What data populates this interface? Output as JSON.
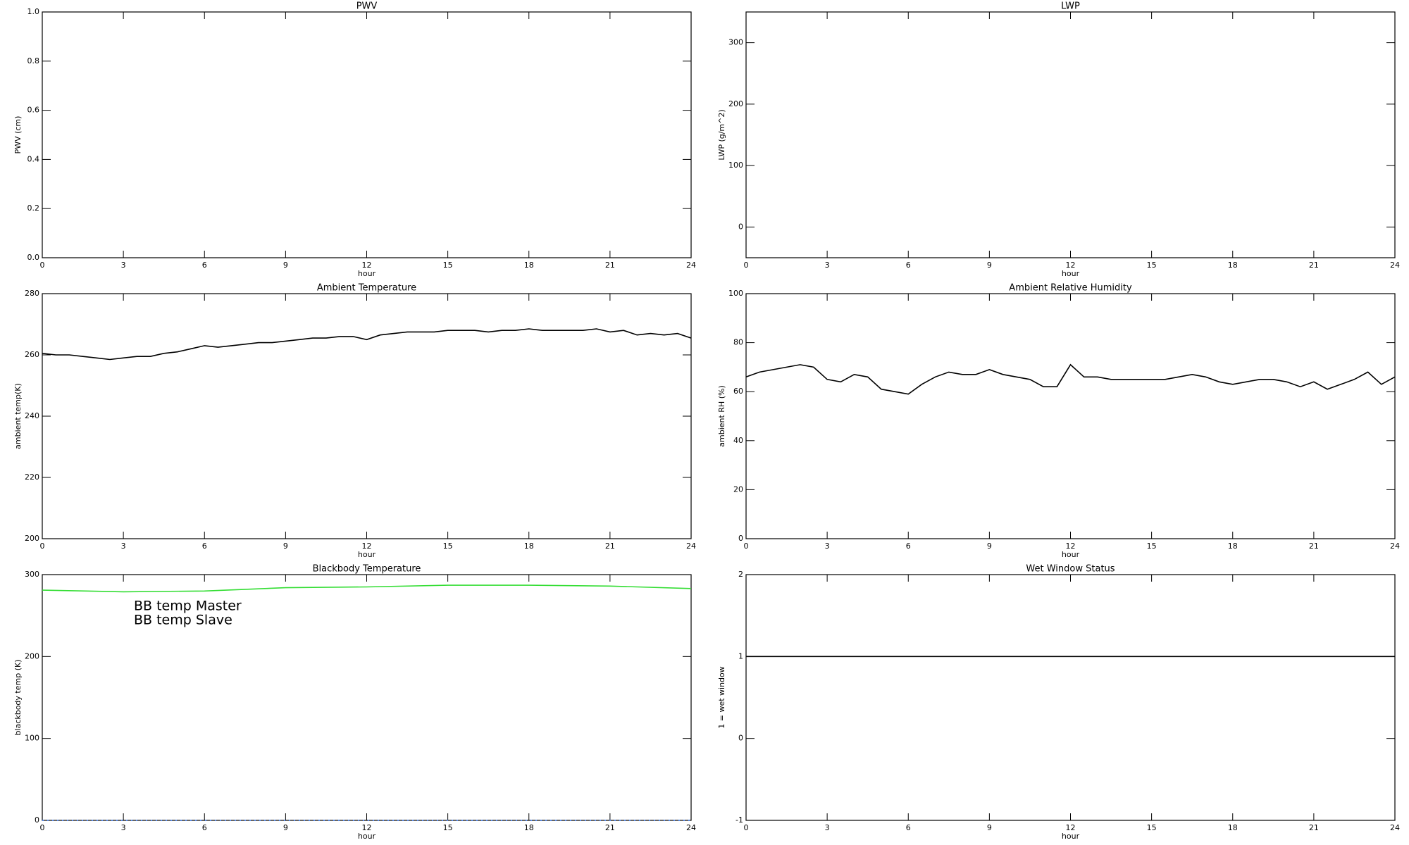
{
  "chart_data": [
    {
      "type": "line",
      "title": "PWV",
      "xlabel": "hour",
      "ylabel": "PWV (cm)",
      "xlim": [
        0,
        24
      ],
      "xticks": [
        0,
        3,
        6,
        9,
        12,
        15,
        18,
        21,
        24
      ],
      "ylim": [
        0,
        1
      ],
      "yticks": [
        {
          "value": 0,
          "label": "0.0"
        },
        0.2,
        0.4,
        0.6,
        0.8,
        {
          "value": 1,
          "label": "1.0"
        }
      ]
    },
    {
      "type": "line",
      "title": "LWP",
      "xlabel": "hour",
      "ylabel": "LWP (g/m^2)",
      "xlim": [
        0,
        24
      ],
      "xticks": [
        0,
        3,
        6,
        9,
        12,
        15,
        18,
        21,
        24
      ],
      "ylim": [
        -50,
        350
      ],
      "yticks": [
        0,
        100,
        200,
        300
      ]
    },
    {
      "type": "line",
      "title": "Ambient Temperature",
      "xlabel": "hour",
      "ylabel": "ambient temp(K)",
      "xlim": [
        0,
        24
      ],
      "xticks": [
        0,
        3,
        6,
        9,
        12,
        15,
        18,
        21,
        24
      ],
      "ylim": [
        200,
        280
      ],
      "yticks": [
        200,
        220,
        240,
        260,
        280
      ],
      "x": [
        0,
        0.5,
        1,
        1.5,
        2,
        2.5,
        3,
        3.5,
        4,
        4.5,
        5,
        5.5,
        6,
        6.5,
        7,
        7.5,
        8,
        8.5,
        9,
        9.5,
        10,
        10.5,
        11,
        11.5,
        12,
        12.5,
        13,
        13.5,
        14,
        14.5,
        15,
        15.5,
        16,
        16.5,
        17,
        17.5,
        18,
        18.5,
        19,
        19.5,
        20,
        20.5,
        21,
        21.5,
        22,
        22.5,
        23,
        23.5,
        24
      ],
      "series": [
        {
          "color": "#000000",
          "values": [
            260.5,
            260,
            260,
            259.5,
            259,
            258.5,
            259,
            259.5,
            259.5,
            260.5,
            261,
            262,
            263,
            262.5,
            263,
            263.5,
            264,
            264,
            264.5,
            265,
            265.5,
            265.5,
            266,
            266,
            265,
            266.5,
            267,
            267.5,
            267.5,
            267.5,
            268,
            268,
            268,
            267.5,
            268,
            268,
            268.5,
            268,
            268,
            268,
            268,
            268.5,
            267.5,
            268,
            266.5,
            267,
            266.5,
            267,
            265.5
          ]
        }
      ]
    },
    {
      "type": "line",
      "title": "Ambient Relative Humidity",
      "xlabel": "hour",
      "ylabel": "ambient RH (%)",
      "xlim": [
        0,
        24
      ],
      "xticks": [
        0,
        3,
        6,
        9,
        12,
        15,
        18,
        21,
        24
      ],
      "ylim": [
        0,
        100
      ],
      "yticks": [
        0,
        20,
        40,
        60,
        80,
        100
      ],
      "x": [
        0,
        0.5,
        1,
        1.5,
        2,
        2.5,
        3,
        3.5,
        4,
        4.5,
        5,
        5.5,
        6,
        6.5,
        7,
        7.5,
        8,
        8.5,
        9,
        9.5,
        10,
        10.5,
        11,
        11.5,
        12,
        12.5,
        13,
        13.5,
        14,
        14.5,
        15,
        15.5,
        16,
        16.5,
        17,
        17.5,
        18,
        18.5,
        19,
        19.5,
        20,
        20.5,
        21,
        21.5,
        22,
        22.5,
        23,
        23.5,
        24
      ],
      "series": [
        {
          "color": "#000000",
          "values": [
            66,
            68,
            69,
            70,
            71,
            70,
            65,
            64,
            67,
            66,
            61,
            60,
            59,
            63,
            66,
            68,
            67,
            67,
            69,
            67,
            66,
            65,
            62,
            62,
            71,
            66,
            66,
            65,
            65,
            65,
            65,
            65,
            66,
            67,
            66,
            64,
            63,
            64,
            65,
            65,
            64,
            62,
            64,
            61,
            63,
            65,
            68,
            63,
            66
          ]
        }
      ]
    },
    {
      "type": "line",
      "title": "Blackbody Temperature",
      "xlabel": "hour",
      "ylabel": "blackbody temp (K)",
      "xlim": [
        0,
        24
      ],
      "xticks": [
        0,
        3,
        6,
        9,
        12,
        15,
        18,
        21,
        24
      ],
      "ylim": [
        0,
        300
      ],
      "yticks": [
        0,
        100,
        200,
        300
      ],
      "legend": "upper left",
      "x": [
        0,
        3,
        6,
        9,
        12,
        15,
        18,
        21,
        24
      ],
      "series": [
        {
          "name": "BB temp Master",
          "color": "#3a7fff",
          "values": [
            0,
            0,
            0,
            0,
            0,
            0,
            0,
            0,
            0
          ]
        },
        {
          "name": "BB temp Slave",
          "color": "#33dd33",
          "values": [
            281,
            279,
            280,
            284,
            285,
            287,
            287,
            286,
            283
          ]
        }
      ]
    },
    {
      "type": "line",
      "title": "Wet Window Status",
      "xlabel": "hour",
      "ylabel": "1 = wet window",
      "xlim": [
        0,
        24
      ],
      "xticks": [
        0,
        3,
        6,
        9,
        12,
        15,
        18,
        21,
        24
      ],
      "ylim": [
        -1,
        2
      ],
      "yticks": [
        -1,
        0,
        1,
        2
      ],
      "x": [
        0,
        24
      ],
      "series": [
        {
          "color": "#000000",
          "values": [
            1,
            1
          ]
        }
      ]
    }
  ]
}
